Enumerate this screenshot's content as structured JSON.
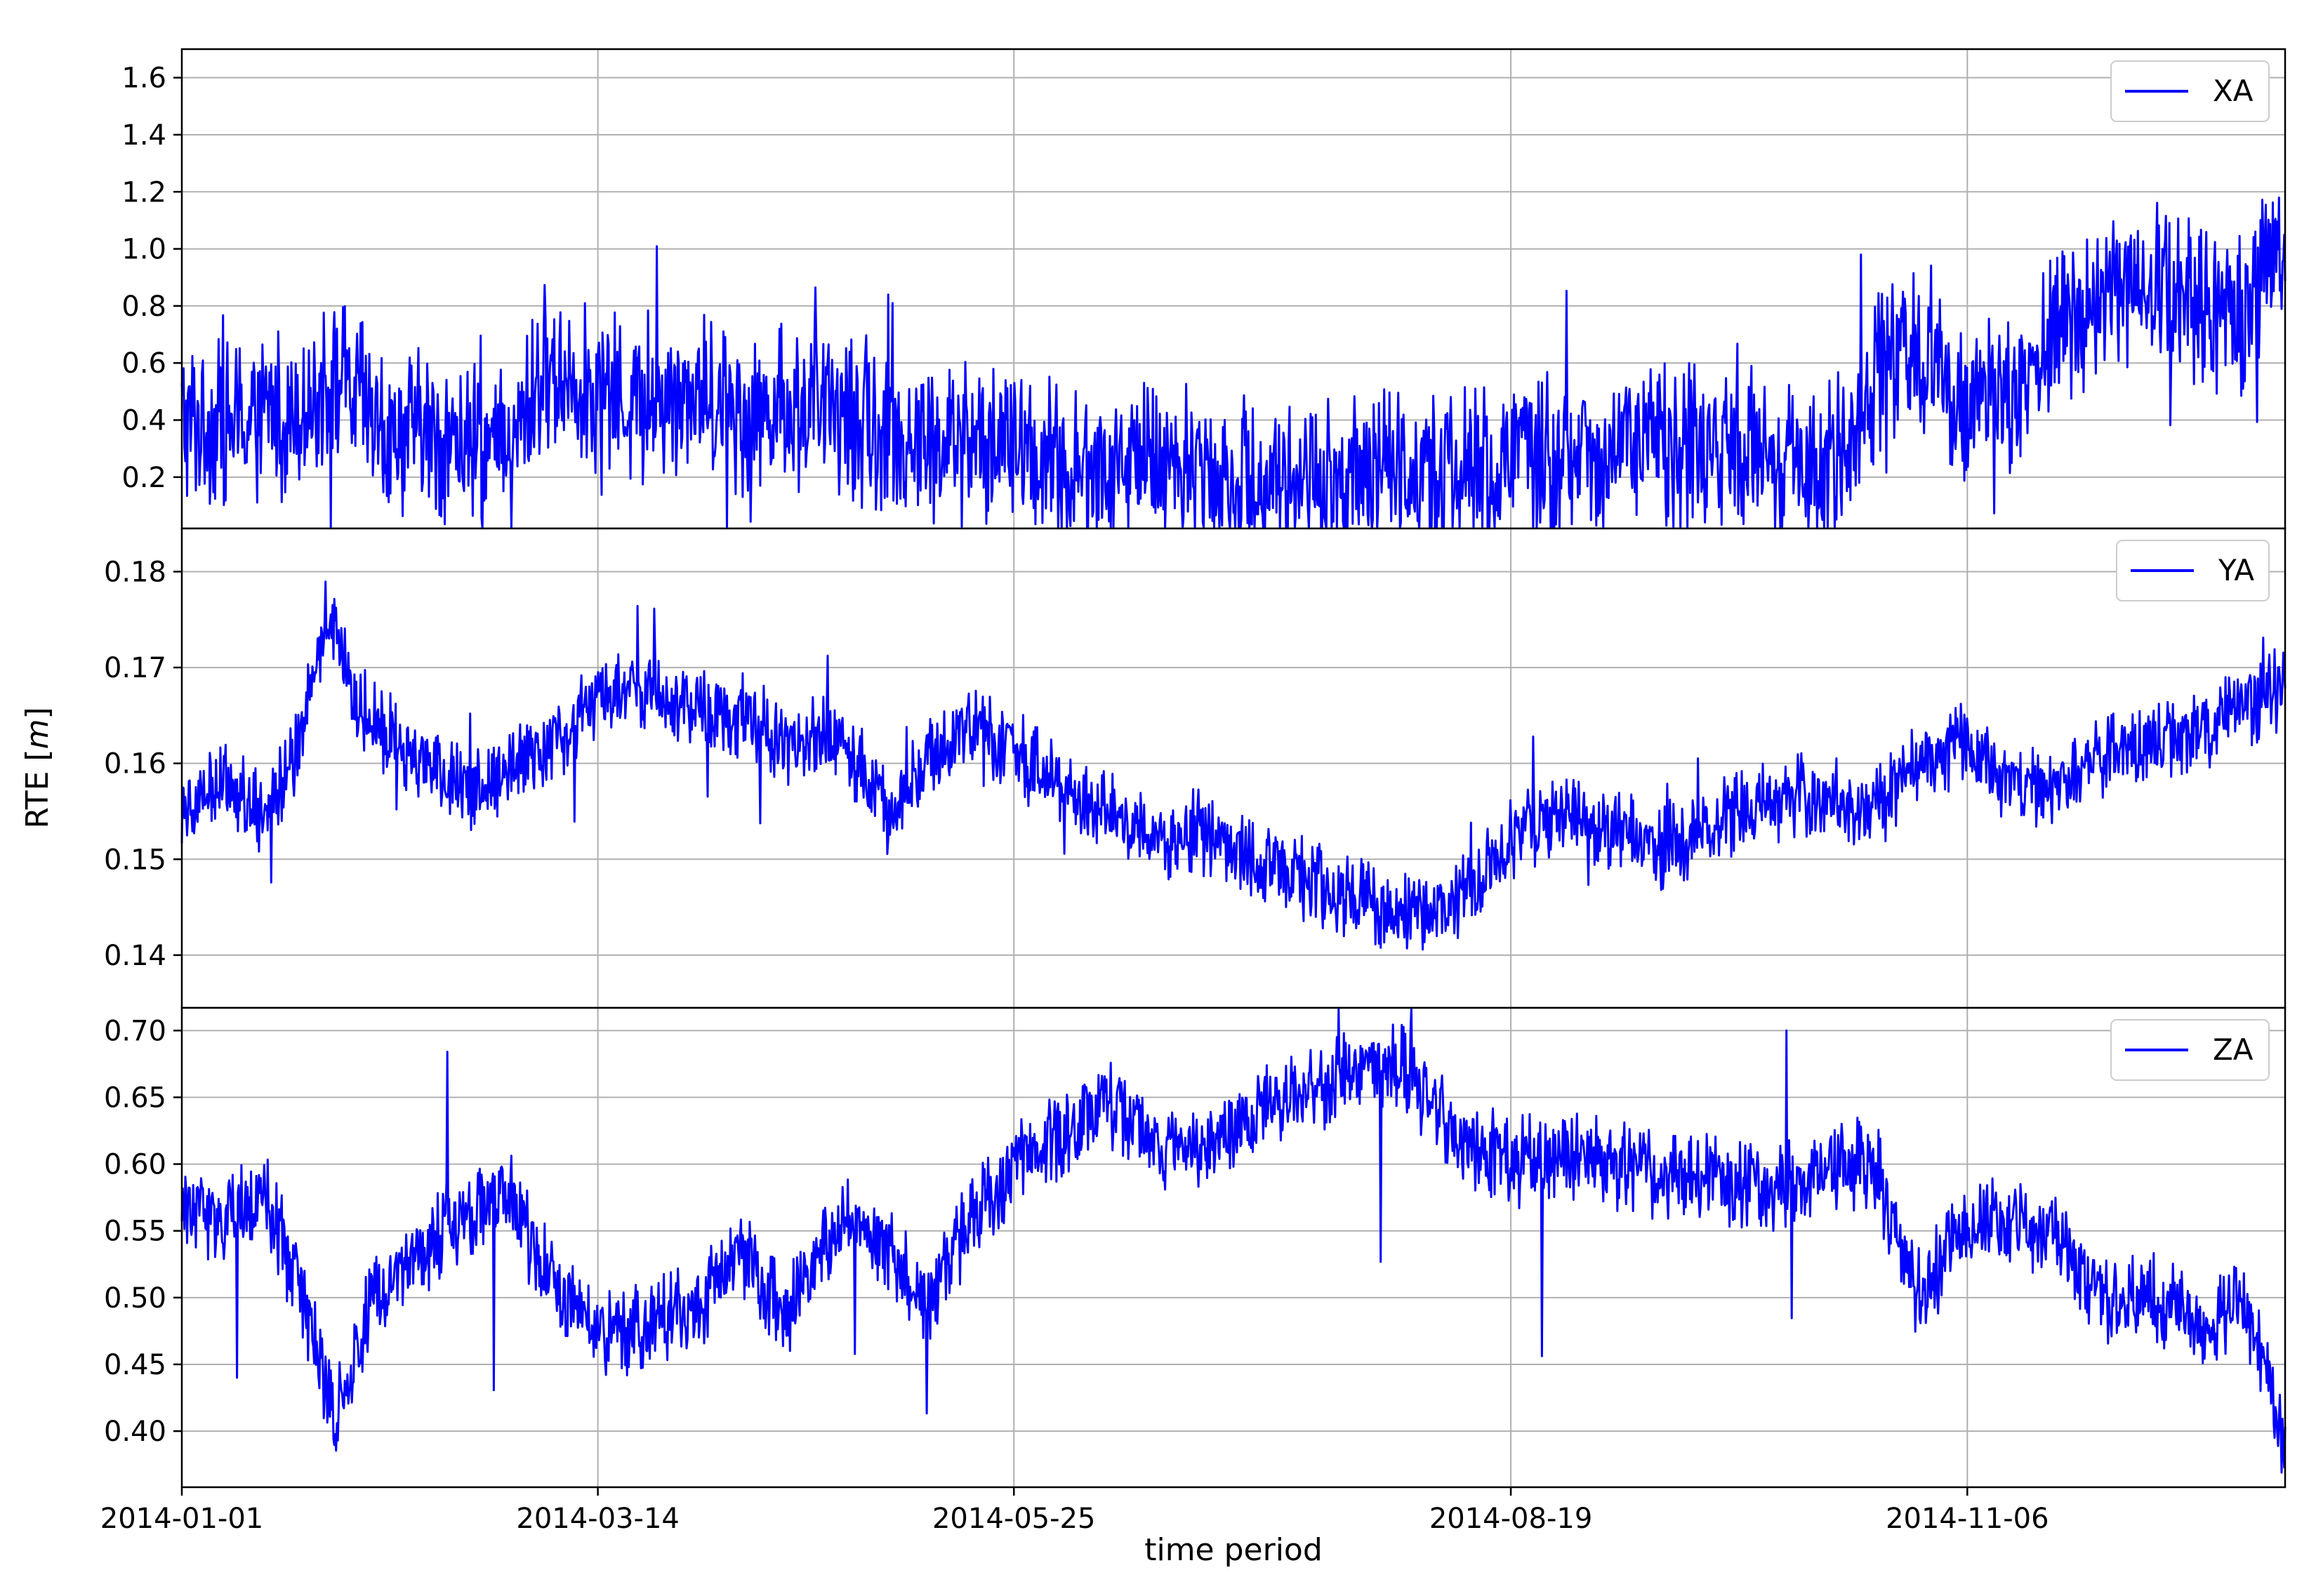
{
  "figure": {
    "xlabel": "time period",
    "ylabel": "RTE [m]",
    "ylabel_main": "RTE [",
    "ylabel_unit": "m",
    "ylabel_close": "]"
  },
  "colors": {
    "line": "#0000ff",
    "grid": "#b0b0b0",
    "axis": "#000000",
    "background": "#ffffff"
  },
  "chart_data": [
    {
      "type": "line",
      "panel": "top",
      "legend_placement": "top-right",
      "grid": true,
      "xlim": [
        "2014-01-01",
        "2014-12-31"
      ],
      "xticks": [
        "2014-01-01",
        "2014-03-14",
        "2014-05-25",
        "2014-08-19",
        "2014-11-06"
      ],
      "ylim": [
        0.02,
        1.7
      ],
      "yticks": [
        0.2,
        0.4,
        0.6,
        0.8,
        1.0,
        1.2,
        1.4,
        1.6
      ],
      "ytick_labels": [
        "0.2",
        "0.4",
        "0.6",
        "0.8",
        "1.0",
        "1.2",
        "1.4",
        "1.6"
      ],
      "series": [
        {
          "name": "XA",
          "x": [
            "2014-01-01",
            "2014-01-10",
            "2014-01-20",
            "2014-01-28",
            "2014-02-05",
            "2014-02-12",
            "2014-02-20",
            "2014-02-27",
            "2014-03-05",
            "2014-03-14",
            "2014-03-22",
            "2014-03-30",
            "2014-04-08",
            "2014-04-16",
            "2014-04-25",
            "2014-05-03",
            "2014-05-12",
            "2014-05-20",
            "2014-05-28",
            "2014-06-06",
            "2014-06-15",
            "2014-06-24",
            "2014-07-03",
            "2014-07-12",
            "2014-07-21",
            "2014-07-30",
            "2014-08-08",
            "2014-08-19",
            "2014-08-28",
            "2014-09-06",
            "2014-09-15",
            "2014-09-24",
            "2014-10-03",
            "2014-10-12",
            "2014-10-21",
            "2014-10-30",
            "2014-11-06",
            "2014-11-14",
            "2014-11-22",
            "2014-11-30",
            "2014-12-08",
            "2014-12-16",
            "2014-12-24",
            "2014-12-31"
          ],
          "y": [
            0.4,
            0.38,
            0.45,
            0.55,
            0.35,
            0.36,
            0.3,
            0.27,
            0.6,
            0.5,
            0.45,
            0.5,
            0.42,
            0.45,
            0.42,
            0.35,
            0.3,
            0.33,
            0.28,
            0.22,
            0.25,
            0.23,
            0.2,
            0.19,
            0.2,
            0.22,
            0.22,
            0.25,
            0.28,
            0.3,
            0.32,
            0.3,
            0.25,
            0.2,
            0.55,
            0.65,
            0.45,
            0.5,
            0.7,
            0.85,
            0.88,
            0.8,
            0.75,
            1.1
          ]
        }
      ]
    },
    {
      "type": "line",
      "panel": "middle",
      "legend_placement": "top-right",
      "grid": true,
      "xlim": [
        "2014-01-01",
        "2014-12-31"
      ],
      "xticks": [
        "2014-01-01",
        "2014-03-14",
        "2014-05-25",
        "2014-08-19",
        "2014-11-06"
      ],
      "ylim": [
        0.1345,
        0.1845
      ],
      "yticks": [
        0.14,
        0.15,
        0.16,
        0.17,
        0.18
      ],
      "ytick_labels": [
        "0.14",
        "0.15",
        "0.16",
        "0.17",
        "0.18"
      ],
      "series": [
        {
          "name": "YA",
          "x": [
            "2014-01-01",
            "2014-01-08",
            "2014-01-15",
            "2014-01-20",
            "2014-01-26",
            "2014-02-01",
            "2014-02-08",
            "2014-02-15",
            "2014-02-22",
            "2014-03-01",
            "2014-03-08",
            "2014-03-14",
            "2014-03-22",
            "2014-03-30",
            "2014-04-08",
            "2014-04-16",
            "2014-04-25",
            "2014-05-03",
            "2014-05-10",
            "2014-05-18",
            "2014-05-25",
            "2014-06-02",
            "2014-06-10",
            "2014-06-18",
            "2014-06-26",
            "2014-07-05",
            "2014-07-14",
            "2014-07-23",
            "2014-08-01",
            "2014-08-10",
            "2014-08-19",
            "2014-08-28",
            "2014-09-06",
            "2014-09-15",
            "2014-09-24",
            "2014-10-03",
            "2014-10-12",
            "2014-10-21",
            "2014-10-30",
            "2014-11-06",
            "2014-11-14",
            "2014-11-22",
            "2014-11-30",
            "2014-12-08",
            "2014-12-16",
            "2014-12-24",
            "2014-12-31"
          ],
          "y": [
            0.156,
            0.158,
            0.155,
            0.16,
            0.175,
            0.165,
            0.162,
            0.158,
            0.157,
            0.16,
            0.163,
            0.167,
            0.168,
            0.166,
            0.165,
            0.162,
            0.163,
            0.155,
            0.16,
            0.164,
            0.161,
            0.158,
            0.155,
            0.152,
            0.153,
            0.15,
            0.148,
            0.146,
            0.144,
            0.146,
            0.152,
            0.155,
            0.153,
            0.151,
            0.154,
            0.156,
            0.157,
            0.155,
            0.161,
            0.162,
            0.157,
            0.158,
            0.161,
            0.162,
            0.163,
            0.166,
            0.168
          ]
        }
      ]
    },
    {
      "type": "line",
      "panel": "bottom",
      "legend_placement": "top-right",
      "grid": true,
      "xlim": [
        "2014-01-01",
        "2014-12-31"
      ],
      "xticks": [
        "2014-01-01",
        "2014-03-14",
        "2014-05-25",
        "2014-08-19",
        "2014-11-06"
      ],
      "xtick_labels": [
        "2014-01-01",
        "2014-03-14",
        "2014-05-25",
        "2014-08-19",
        "2014-11-06"
      ],
      "ylim": [
        0.358,
        0.717
      ],
      "yticks": [
        0.4,
        0.45,
        0.5,
        0.55,
        0.6,
        0.65,
        0.7
      ],
      "ytick_labels": [
        "0.40",
        "0.45",
        "0.50",
        "0.55",
        "0.60",
        "0.65",
        "0.70"
      ],
      "series": [
        {
          "name": "ZA",
          "x": [
            "2014-01-01",
            "2014-01-08",
            "2014-01-15",
            "2014-01-22",
            "2014-01-27",
            "2014-02-03",
            "2014-02-10",
            "2014-02-18",
            "2014-02-26",
            "2014-03-05",
            "2014-03-14",
            "2014-03-22",
            "2014-03-30",
            "2014-04-08",
            "2014-04-16",
            "2014-04-25",
            "2014-05-03",
            "2014-05-10",
            "2014-05-18",
            "2014-05-25",
            "2014-06-02",
            "2014-06-10",
            "2014-06-18",
            "2014-06-26",
            "2014-07-05",
            "2014-07-14",
            "2014-07-23",
            "2014-08-01",
            "2014-08-10",
            "2014-08-19",
            "2014-08-28",
            "2014-09-06",
            "2014-09-15",
            "2014-09-24",
            "2014-10-03",
            "2014-10-12",
            "2014-10-21",
            "2014-10-28",
            "2014-11-06",
            "2014-11-14",
            "2014-11-22",
            "2014-11-30",
            "2014-12-08",
            "2014-12-16",
            "2014-12-24",
            "2014-12-31"
          ],
          "y": [
            0.57,
            0.56,
            0.58,
            0.5,
            0.41,
            0.5,
            0.53,
            0.56,
            0.58,
            0.52,
            0.47,
            0.48,
            0.49,
            0.53,
            0.49,
            0.56,
            0.54,
            0.5,
            0.56,
            0.6,
            0.62,
            0.65,
            0.61,
            0.61,
            0.64,
            0.65,
            0.67,
            0.67,
            0.62,
            0.6,
            0.61,
            0.6,
            0.59,
            0.59,
            0.58,
            0.6,
            0.6,
            0.5,
            0.55,
            0.56,
            0.54,
            0.5,
            0.5,
            0.48,
            0.5,
            0.39
          ]
        }
      ]
    }
  ]
}
